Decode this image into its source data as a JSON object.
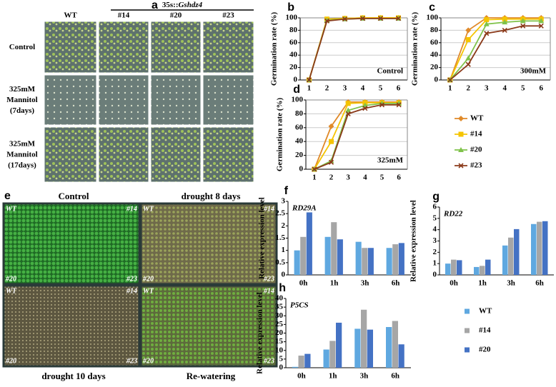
{
  "photo_panel_a": {
    "panel": "a",
    "columns": [
      "WT",
      "#14",
      "#20",
      "#23"
    ],
    "transgene_prefix": "35s::",
    "transgene": "Gshdz4",
    "rows": [
      "Control",
      "325mM Mannitol (7days)",
      "325mM Mannitol (17days)"
    ]
  },
  "photo_panel_e": {
    "panel": "e",
    "titles": [
      "Control",
      "drought  8 days",
      "drought  10 days",
      "Re-watering"
    ],
    "corner_labels": [
      "WT",
      "#14",
      "#20",
      "#23"
    ]
  },
  "chart_data": [
    {
      "type": "line",
      "panel": "b",
      "annotation": "Control",
      "y_label": "Germination rate (%)",
      "categories": [
        "1",
        "2",
        "3",
        "4",
        "5",
        "6"
      ],
      "ylim": [
        0,
        100
      ],
      "yticks": [
        0,
        20,
        40,
        60,
        80,
        100
      ],
      "legend": false,
      "series": [
        {
          "name": "WT",
          "color": "#e08a2a",
          "values": [
            0,
            97,
            99,
            100,
            100,
            100
          ]
        },
        {
          "name": "#14",
          "color": "#f5c400",
          "values": [
            0,
            98,
            99,
            100,
            100,
            100
          ]
        },
        {
          "name": "#20",
          "color": "#7fc24a",
          "values": [
            0,
            96,
            98,
            99,
            99,
            99
          ]
        },
        {
          "name": "#23",
          "color": "#8b3a1a",
          "values": [
            0,
            95,
            98,
            99,
            99,
            99
          ]
        }
      ]
    },
    {
      "type": "line",
      "panel": "c",
      "annotation": "300mM",
      "y_label": "Germination rate (%)",
      "categories": [
        "1",
        "2",
        "3",
        "4",
        "5",
        "6"
      ],
      "ylim": [
        0,
        100
      ],
      "yticks": [
        0,
        20,
        40,
        60,
        80,
        100
      ],
      "legend": false,
      "series": [
        {
          "name": "WT",
          "color": "#e08a2a",
          "values": [
            0,
            80,
            100,
            100,
            100,
            100
          ]
        },
        {
          "name": "#14",
          "color": "#f5c400",
          "values": [
            0,
            65,
            97,
            98,
            98,
            98
          ]
        },
        {
          "name": "#20",
          "color": "#7fc24a",
          "values": [
            0,
            35,
            90,
            93,
            95,
            95
          ]
        },
        {
          "name": "#23",
          "color": "#8b3a1a",
          "values": [
            0,
            25,
            75,
            80,
            87,
            87
          ]
        }
      ]
    },
    {
      "type": "line",
      "panel": "d",
      "annotation": "325mM",
      "y_label": "Germination rate (%)",
      "categories": [
        "1",
        "2",
        "3",
        "4",
        "5",
        "6"
      ],
      "ylim": [
        0,
        100
      ],
      "yticks": [
        0,
        20,
        40,
        60,
        80,
        100
      ],
      "legend": true,
      "series": [
        {
          "name": "WT",
          "color": "#e08a2a",
          "values": [
            0,
            62,
            97,
            97,
            97,
            97
          ]
        },
        {
          "name": "#14",
          "color": "#f5c400",
          "values": [
            0,
            40,
            95,
            96,
            96,
            96
          ]
        },
        {
          "name": "#20",
          "color": "#7fc24a",
          "values": [
            0,
            12,
            85,
            92,
            95,
            95
          ]
        },
        {
          "name": "#23",
          "color": "#8b3a1a",
          "values": [
            0,
            10,
            80,
            88,
            93,
            93
          ]
        }
      ]
    },
    {
      "type": "bar",
      "panel": "f",
      "annotation": "RD29A",
      "y_label": "Relative expression level",
      "categories": [
        "0h",
        "1h",
        "3h",
        "6h"
      ],
      "ylim": [
        0,
        3
      ],
      "yticks": [
        0,
        0.5,
        1,
        1.5,
        2,
        2.5,
        3
      ],
      "legend": false,
      "series": [
        {
          "name": "WT",
          "color": "#5fa8e0",
          "values": [
            1,
            1.55,
            1.35,
            1.1
          ]
        },
        {
          "name": "#14",
          "color": "#a6a6a6",
          "values": [
            1.55,
            2.15,
            1.1,
            1.25
          ]
        },
        {
          "name": "#20",
          "color": "#4472c4",
          "values": [
            2.55,
            1.45,
            1.1,
            1.3
          ]
        }
      ]
    },
    {
      "type": "bar",
      "panel": "g",
      "annotation": "RD22",
      "y_label": "Relative expression level",
      "categories": [
        "0h",
        "1h",
        "3h",
        "6h"
      ],
      "ylim": [
        0,
        6
      ],
      "yticks": [
        0,
        1,
        2,
        3,
        4,
        5,
        6
      ],
      "legend": false,
      "series": [
        {
          "name": "WT",
          "color": "#5fa8e0",
          "values": [
            1,
            0.7,
            2.6,
            4.5
          ]
        },
        {
          "name": "#14",
          "color": "#a6a6a6",
          "values": [
            1.35,
            0.8,
            3.3,
            4.7
          ]
        },
        {
          "name": "#20",
          "color": "#4472c4",
          "values": [
            1.3,
            1.35,
            4.05,
            4.75
          ]
        }
      ]
    },
    {
      "type": "bar",
      "panel": "h",
      "annotation": "P5CS",
      "y_label": "Relative expression level",
      "categories": [
        "0h",
        "1h",
        "3h",
        "6h"
      ],
      "ylim": [
        0,
        40
      ],
      "yticks": [
        0,
        5,
        10,
        15,
        20,
        25,
        30,
        35,
        40
      ],
      "legend": true,
      "series": [
        {
          "name": "WT",
          "color": "#5fa8e0",
          "values": [
            0.5,
            10.5,
            22.5,
            23.5
          ]
        },
        {
          "name": "#14",
          "color": "#a6a6a6",
          "values": [
            7,
            15.5,
            33.5,
            27
          ]
        },
        {
          "name": "#20",
          "color": "#4472c4",
          "values": [
            8,
            26,
            22,
            13.5
          ]
        }
      ]
    }
  ]
}
